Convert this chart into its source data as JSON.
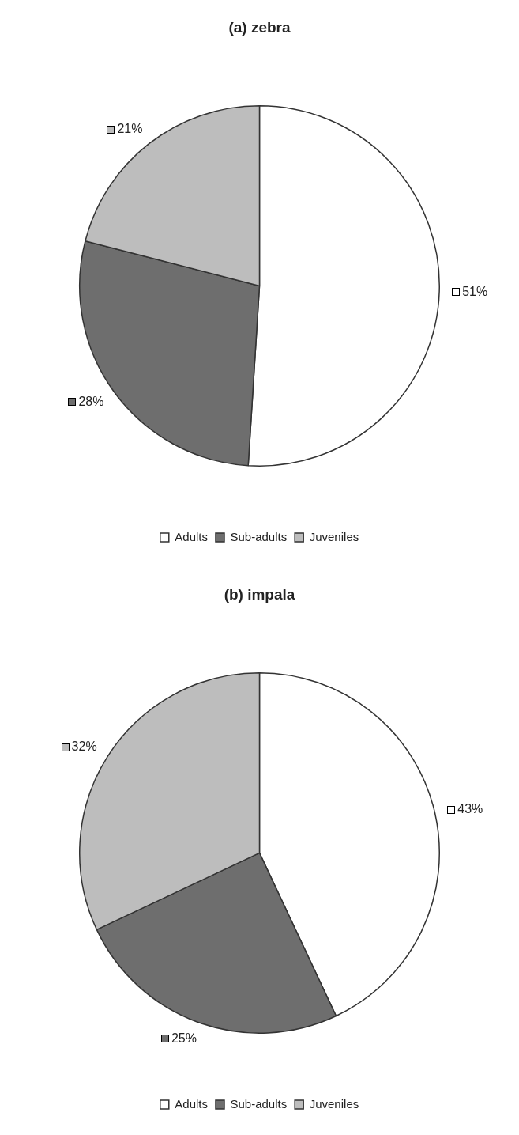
{
  "chart_data": [
    {
      "type": "pie",
      "title": "(a) zebra",
      "categories": [
        "Adults",
        "Sub-adults",
        "Juveniles"
      ],
      "values": [
        51,
        28,
        21
      ],
      "colors": [
        "#ffffff",
        "#6e6e6e",
        "#bdbdbd"
      ],
      "value_labels": [
        "51%",
        "28%",
        "21%"
      ],
      "legend": "bottom"
    },
    {
      "type": "pie",
      "title": "(b) impala",
      "categories": [
        "Adults",
        "Sub-adults",
        "Juveniles"
      ],
      "values": [
        43,
        25,
        32
      ],
      "colors": [
        "#ffffff",
        "#6e6e6e",
        "#bdbdbd"
      ],
      "value_labels": [
        "43%",
        "25%",
        "32%"
      ],
      "legend": "bottom"
    }
  ]
}
